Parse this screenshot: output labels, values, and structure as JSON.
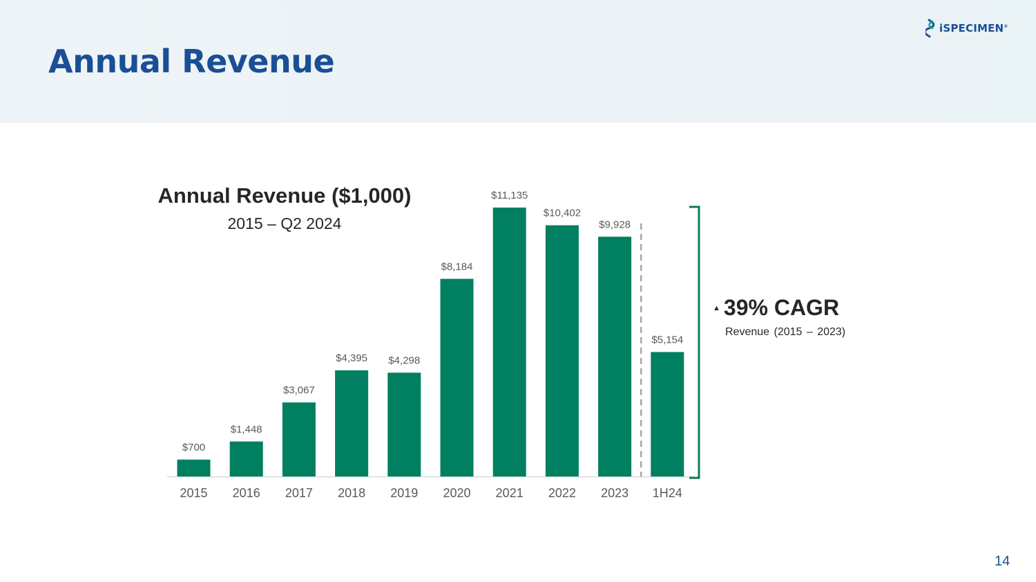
{
  "slide": {
    "title": "Annual Revenue",
    "page_number": "14"
  },
  "logo": {
    "text": "iSPECIMEN",
    "registered_mark": "®"
  },
  "cagr": {
    "arrow": "▲",
    "value": "39% CAGR",
    "subtitle": "Revenue (2015 – 2023)"
  },
  "colors": {
    "bar": "#008060",
    "title_blue": "#1a4f95",
    "bracket": "#0e7a55",
    "divider": "#a6a6a6"
  },
  "chart_data": {
    "type": "bar",
    "title": "Annual Revenue ($1,000)",
    "subtitle": "2015 – Q2 2024",
    "categories": [
      "2015",
      "2016",
      "2017",
      "2018",
      "2019",
      "2020",
      "2021",
      "2022",
      "2023",
      "1H24"
    ],
    "values": [
      700,
      1448,
      3067,
      4395,
      4298,
      8184,
      11135,
      10402,
      9928,
      5154
    ],
    "data_labels": [
      "$700",
      "$1,448",
      "$3,067",
      "$4,395",
      "$4,298",
      "$8,184",
      "$11,135",
      "$10,402",
      "$9,928",
      "$5,154"
    ],
    "ylim": [
      0,
      11135
    ],
    "grid": false,
    "legend": "none"
  }
}
